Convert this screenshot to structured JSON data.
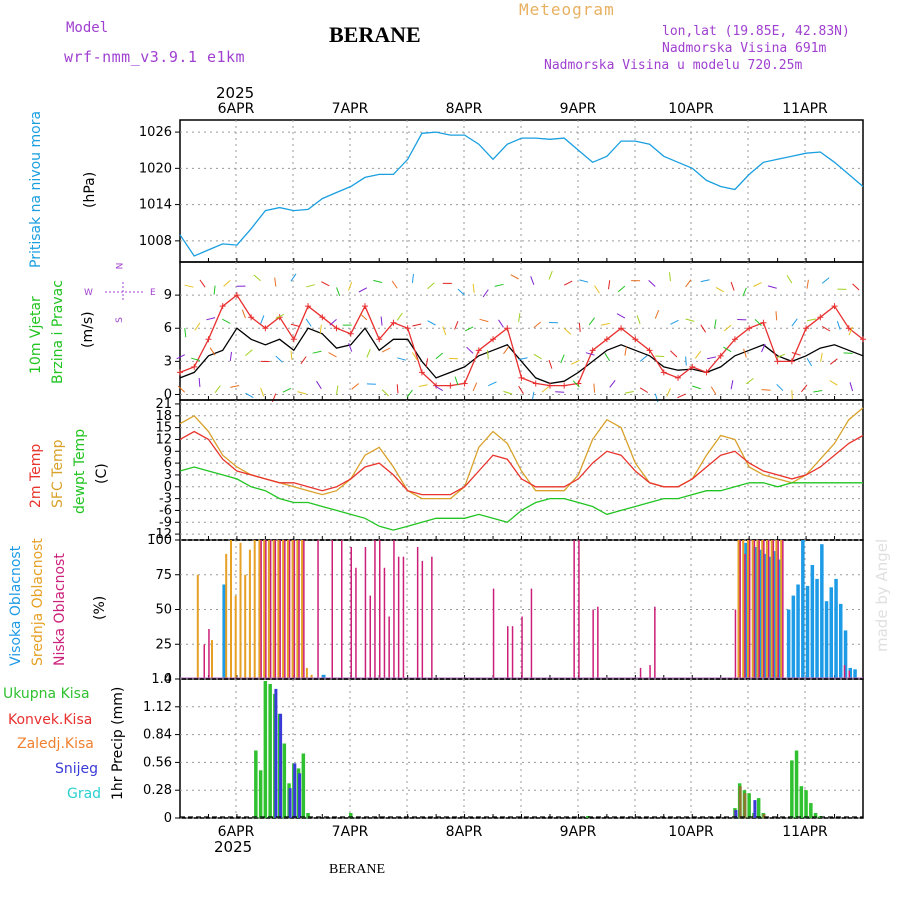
{
  "header": {
    "model_label": "Model",
    "model_name": "wrf-nmm_v3.9.1 e1km",
    "station": "BERANE",
    "meteogram": "Meteogram",
    "lonlat": "lon,lat (19.85E, 42.83N)",
    "elevation": "Nadmorska Visina 691m",
    "model_elevation": "Nadmorska Visina u modelu 720.25m",
    "footer_station": "BERANE",
    "watermark": "made by Angel"
  },
  "colors": {
    "pressure": "#1a9fe0",
    "temp2m": "#e8342c",
    "sfc_temp": "#d9a12a",
    "dewpt": "#22c422",
    "high_cloud": "#1e9be6",
    "mid_cloud": "#e6a024",
    "low_cloud": "#cc1f7a",
    "total_precip": "#2fc12f",
    "conv_precip": "#e83030",
    "freezing_precip": "#f08030",
    "snow": "#3a3ad8",
    "hail": "#2ad0d0",
    "title_purple": "#a040d0",
    "meteogram_orange": "#e8b060"
  },
  "chart_data": [
    {
      "type": "line",
      "panel": "pressure",
      "ylabel_main": "Pritisak na nivou mora",
      "ylabel_unit": "(hPa)",
      "yticks": [
        "1008",
        "1014",
        "1020",
        "1026"
      ],
      "ylim": [
        1004.5,
        1028
      ],
      "xlim": [
        0,
        144
      ],
      "date_ticks_top": [
        "6APR",
        "7APR",
        "8APR",
        "9APR",
        "10APR",
        "11APR"
      ],
      "year_top": "2025",
      "grid": true,
      "series": [
        {
          "x": [
            0,
            3,
            6,
            9,
            12,
            15,
            18,
            21,
            24,
            27,
            30,
            33,
            36,
            39,
            42,
            45,
            48,
            51,
            54,
            57,
            60,
            63,
            66,
            69,
            72,
            75,
            78,
            81,
            84,
            87,
            90,
            93,
            96,
            99,
            102,
            105,
            108,
            111,
            114,
            117,
            120,
            123,
            126,
            129,
            132,
            135,
            138,
            141,
            144
          ],
          "values": [
            1009,
            1005.5,
            1006.5,
            1007.5,
            1007.3,
            1010,
            1013,
            1013.5,
            1013,
            1013.2,
            1015,
            1016,
            1017,
            1018.5,
            1019,
            1019,
            1021.5,
            1025.8,
            1026,
            1025.5,
            1025.5,
            1024,
            1021.5,
            1024,
            1025,
            1025,
            1024.8,
            1025,
            1023,
            1021,
            1022,
            1024.5,
            1024.5,
            1024,
            1022,
            1021,
            1020,
            1018,
            1017,
            1016.5,
            1019,
            1021,
            1021.5,
            1022,
            1022.5,
            1022.7,
            1021,
            1019,
            1017
          ]
        }
      ]
    },
    {
      "type": "line",
      "panel": "wind",
      "ylabel_main": "10m Vjetar",
      "ylabel_sub": "Brzina i Pravac",
      "ylabel_unit": "(m/s)",
      "compass": [
        "N",
        "W",
        "E",
        "S"
      ],
      "yticks": [
        "0",
        "3",
        "6",
        "9"
      ],
      "ylim": [
        -0.5,
        12
      ],
      "xlim": [
        0,
        144
      ],
      "grid": true,
      "series": [
        {
          "name": "speed",
          "x": [
            0,
            3,
            6,
            9,
            12,
            15,
            18,
            21,
            24,
            27,
            30,
            33,
            36,
            39,
            42,
            45,
            48,
            51,
            54,
            57,
            60,
            63,
            66,
            69,
            72,
            75,
            78,
            81,
            84,
            87,
            90,
            93,
            96,
            99,
            102,
            105,
            108,
            111,
            114,
            117,
            120,
            123,
            126,
            129,
            132,
            135,
            138,
            141,
            144
          ],
          "values": [
            1.5,
            2,
            3.5,
            4,
            6,
            5,
            4.5,
            5,
            4,
            6,
            5.5,
            4.2,
            4.5,
            6,
            4,
            5,
            5,
            3,
            1.5,
            2,
            2.5,
            3.5,
            4,
            4.5,
            3,
            1.5,
            1,
            1.2,
            2,
            3,
            4,
            4.5,
            4,
            3.5,
            2.5,
            2.2,
            2.3,
            2,
            2.5,
            3.5,
            4,
            4.5,
            3.5,
            3,
            3.5,
            4.2,
            4.5,
            4,
            3.5
          ]
        },
        {
          "name": "gust",
          "x": [
            0,
            3,
            6,
            9,
            12,
            15,
            18,
            21,
            24,
            27,
            30,
            33,
            36,
            39,
            42,
            45,
            48,
            51,
            54,
            57,
            60,
            63,
            66,
            69,
            72,
            75,
            78,
            81,
            84,
            87,
            90,
            93,
            96,
            99,
            102,
            105,
            108,
            111,
            114,
            117,
            120,
            123,
            126,
            129,
            132,
            135,
            138,
            141,
            144
          ],
          "values": [
            2,
            2.5,
            5,
            8,
            9,
            7,
            6,
            7,
            5,
            8,
            7,
            6,
            5.5,
            8,
            5,
            6.5,
            6,
            2,
            0.8,
            0.8,
            1,
            4,
            5,
            6,
            1.5,
            1,
            0.8,
            0.8,
            1,
            4,
            5,
            6,
            5,
            4,
            2,
            1.5,
            2.5,
            2,
            3.5,
            5,
            6,
            6.5,
            3,
            3,
            6,
            7,
            8,
            6,
            5
          ]
        }
      ]
    },
    {
      "type": "line",
      "panel": "temperature",
      "ylabel_main": "2m Temp",
      "ylabel_sub": "SFC Temp",
      "ylabel_sub2": "dewpt Temp",
      "ylabel_unit": "(C)",
      "yticks": [
        "-12",
        "-9",
        "-6",
        "-3",
        "0",
        "3",
        "6",
        "9",
        "12",
        "15",
        "18",
        "21"
      ],
      "ylim": [
        -13.5,
        22
      ],
      "xlim": [
        0,
        144
      ],
      "grid": true,
      "series": [
        {
          "name": "sfc",
          "x": [
            0,
            3,
            6,
            9,
            12,
            15,
            18,
            21,
            24,
            27,
            30,
            33,
            36,
            39,
            42,
            45,
            48,
            51,
            54,
            57,
            60,
            63,
            66,
            69,
            72,
            75,
            78,
            81,
            84,
            87,
            90,
            93,
            96,
            99,
            102,
            105,
            108,
            111,
            114,
            117,
            120,
            123,
            126,
            129,
            132,
            135,
            138,
            141,
            144
          ],
          "values": [
            16,
            18,
            14,
            8,
            5,
            3,
            2,
            1,
            0,
            -1,
            -2,
            -1,
            2,
            8,
            10,
            5,
            -1,
            -3,
            -3,
            -3,
            0,
            10,
            14,
            11,
            4,
            -1,
            -1,
            -1,
            3,
            12,
            17,
            15,
            6,
            1,
            0,
            0,
            2,
            8,
            13,
            12,
            5,
            3,
            2,
            1,
            3,
            7,
            11,
            17,
            20
          ]
        },
        {
          "name": "t2m",
          "x": [
            0,
            3,
            6,
            9,
            12,
            15,
            18,
            21,
            24,
            27,
            30,
            33,
            36,
            39,
            42,
            45,
            48,
            51,
            54,
            57,
            60,
            63,
            66,
            69,
            72,
            75,
            78,
            81,
            84,
            87,
            90,
            93,
            96,
            99,
            102,
            105,
            108,
            111,
            114,
            117,
            120,
            123,
            126,
            129,
            132,
            135,
            138,
            141,
            144
          ],
          "values": [
            12,
            14,
            12,
            7,
            4,
            3,
            2,
            1,
            1,
            0,
            -1,
            0,
            2,
            5,
            6,
            3,
            -1,
            -2,
            -2,
            -2,
            0,
            4,
            8,
            7,
            2,
            0,
            0,
            0,
            2,
            6,
            9,
            8,
            4,
            1,
            0,
            0,
            2,
            5,
            8,
            9,
            6,
            4,
            3,
            2,
            3,
            5,
            8,
            11,
            13
          ]
        },
        {
          "name": "dew",
          "x": [
            0,
            3,
            6,
            9,
            12,
            15,
            18,
            21,
            24,
            27,
            30,
            33,
            36,
            39,
            42,
            45,
            48,
            51,
            54,
            57,
            60,
            63,
            66,
            69,
            72,
            75,
            78,
            81,
            84,
            87,
            90,
            93,
            96,
            99,
            102,
            105,
            108,
            111,
            114,
            117,
            120,
            123,
            126,
            129,
            132,
            135,
            138,
            141,
            144
          ],
          "values": [
            4,
            5,
            4,
            3,
            2,
            0,
            -1,
            -3,
            -4,
            -4,
            -5,
            -6,
            -7,
            -8,
            -10,
            -11,
            -10,
            -9,
            -8,
            -8,
            -8,
            -7,
            -8,
            -9,
            -6,
            -4,
            -3,
            -3,
            -4,
            -5,
            -7,
            -6,
            -5,
            -4,
            -3,
            -3,
            -2,
            -1,
            -1,
            0,
            1,
            1,
            0,
            1,
            1,
            1,
            1,
            1,
            1
          ]
        }
      ]
    },
    {
      "type": "bar",
      "panel": "clouds",
      "ylabel_main": "Visoka Oblacnost",
      "ylabel_sub": "Srednja Oblacnost",
      "ylabel_sub2": "Niska Oblacnost",
      "ylabel_unit": "(%)",
      "yticks": [
        "0",
        "25",
        "50",
        "75",
        "100"
      ],
      "ylim": [
        0,
        100
      ],
      "xlim": [
        0,
        144
      ],
      "grid": true,
      "series": [
        {
          "name": "high",
          "x": [
            9,
            30,
            119,
            121,
            122,
            123,
            124,
            125,
            126,
            128,
            129,
            130,
            131,
            132,
            133,
            134,
            135,
            136,
            137,
            138,
            139,
            140,
            141,
            142
          ],
          "values": [
            68,
            3,
            98,
            95,
            93,
            90,
            88,
            92,
            86,
            50,
            60,
            68,
            100,
            67,
            82,
            72,
            97,
            56,
            66,
            72,
            54,
            35,
            8,
            7
          ]
        },
        {
          "name": "mid",
          "x": [
            4,
            7,
            10,
            11,
            12,
            13,
            14,
            15,
            16,
            17,
            18,
            19,
            20,
            21,
            22,
            23,
            24,
            25,
            26,
            27,
            28,
            118,
            119,
            120,
            121,
            122,
            123,
            124,
            125,
            126,
            127
          ],
          "values": [
            75,
            28,
            90,
            100,
            60,
            98,
            75,
            93,
            100,
            100,
            100,
            100,
            100,
            100,
            100,
            100,
            100,
            100,
            100,
            8,
            3,
            100,
            100,
            100,
            100,
            100,
            100,
            100,
            100,
            100,
            100
          ]
        },
        {
          "name": "low",
          "x": [
            5,
            6,
            17,
            18,
            19,
            20,
            21,
            22,
            23,
            24,
            25,
            26,
            29,
            32,
            34,
            36,
            37,
            39,
            40,
            41,
            42,
            43,
            44,
            45,
            46,
            47,
            50,
            51,
            53,
            66,
            69,
            70,
            72,
            74,
            83,
            84,
            87,
            88,
            97,
            99,
            100,
            117,
            118,
            119,
            120,
            121,
            122,
            123,
            124,
            125,
            126,
            127,
            140,
            141
          ],
          "values": [
            25,
            36,
            100,
            100,
            100,
            100,
            100,
            100,
            100,
            100,
            100,
            100,
            100,
            100,
            100,
            95,
            80,
            95,
            60,
            100,
            100,
            80,
            45,
            100,
            88,
            88,
            95,
            85,
            88,
            65,
            38,
            38,
            45,
            65,
            100,
            100,
            50,
            52,
            8,
            10,
            52,
            50,
            100,
            90,
            100,
            100,
            100,
            100,
            100,
            100,
            100,
            100,
            10,
            6
          ]
        }
      ]
    },
    {
      "type": "bar",
      "panel": "precip",
      "ylabel_main": "1hr Precip (mm)",
      "legend": [
        "Ukupna Kisa",
        "Konvek.Kisa",
        "Zaledj.Kisa",
        "Snijeg",
        "Grad"
      ],
      "yticks": [
        "0",
        "0.28",
        "0.56",
        "0.84",
        "1.12",
        "1.4"
      ],
      "ylim": [
        0,
        1.4
      ],
      "xlim": [
        0,
        144
      ],
      "date_ticks_bottom": [
        "6APR",
        "7APR",
        "8APR",
        "9APR",
        "10APR",
        "11APR"
      ],
      "year_bottom": "2025",
      "grid": true,
      "series": [
        {
          "name": "total",
          "x": [
            16,
            17,
            18,
            19,
            20,
            21,
            22,
            23,
            24,
            25,
            26,
            27,
            36,
            86,
            117,
            118,
            119,
            120,
            121,
            122,
            123,
            129,
            130,
            131,
            132,
            133,
            134,
            135
          ],
          "values": [
            0.68,
            0.48,
            1.38,
            1.35,
            1.25,
            1.05,
            0.75,
            0.35,
            0.55,
            0.5,
            0.65,
            0.05,
            0.05,
            0.02,
            0.1,
            0.35,
            0.28,
            0.25,
            0.05,
            0.2,
            0.05,
            0.58,
            0.68,
            0.32,
            0.28,
            0.15,
            0.05,
            0.02
          ]
        },
        {
          "name": "conv",
          "x": [
            117,
            118,
            119,
            121,
            123
          ],
          "values": [
            0.08,
            0.32,
            0.25,
            0.04,
            0.04
          ]
        },
        {
          "name": "snow",
          "x": [
            20,
            21,
            23,
            24,
            25,
            117,
            121
          ],
          "values": [
            1.3,
            1.05,
            0.3,
            0.55,
            0.45,
            0.08,
            0.18
          ]
        }
      ]
    }
  ]
}
